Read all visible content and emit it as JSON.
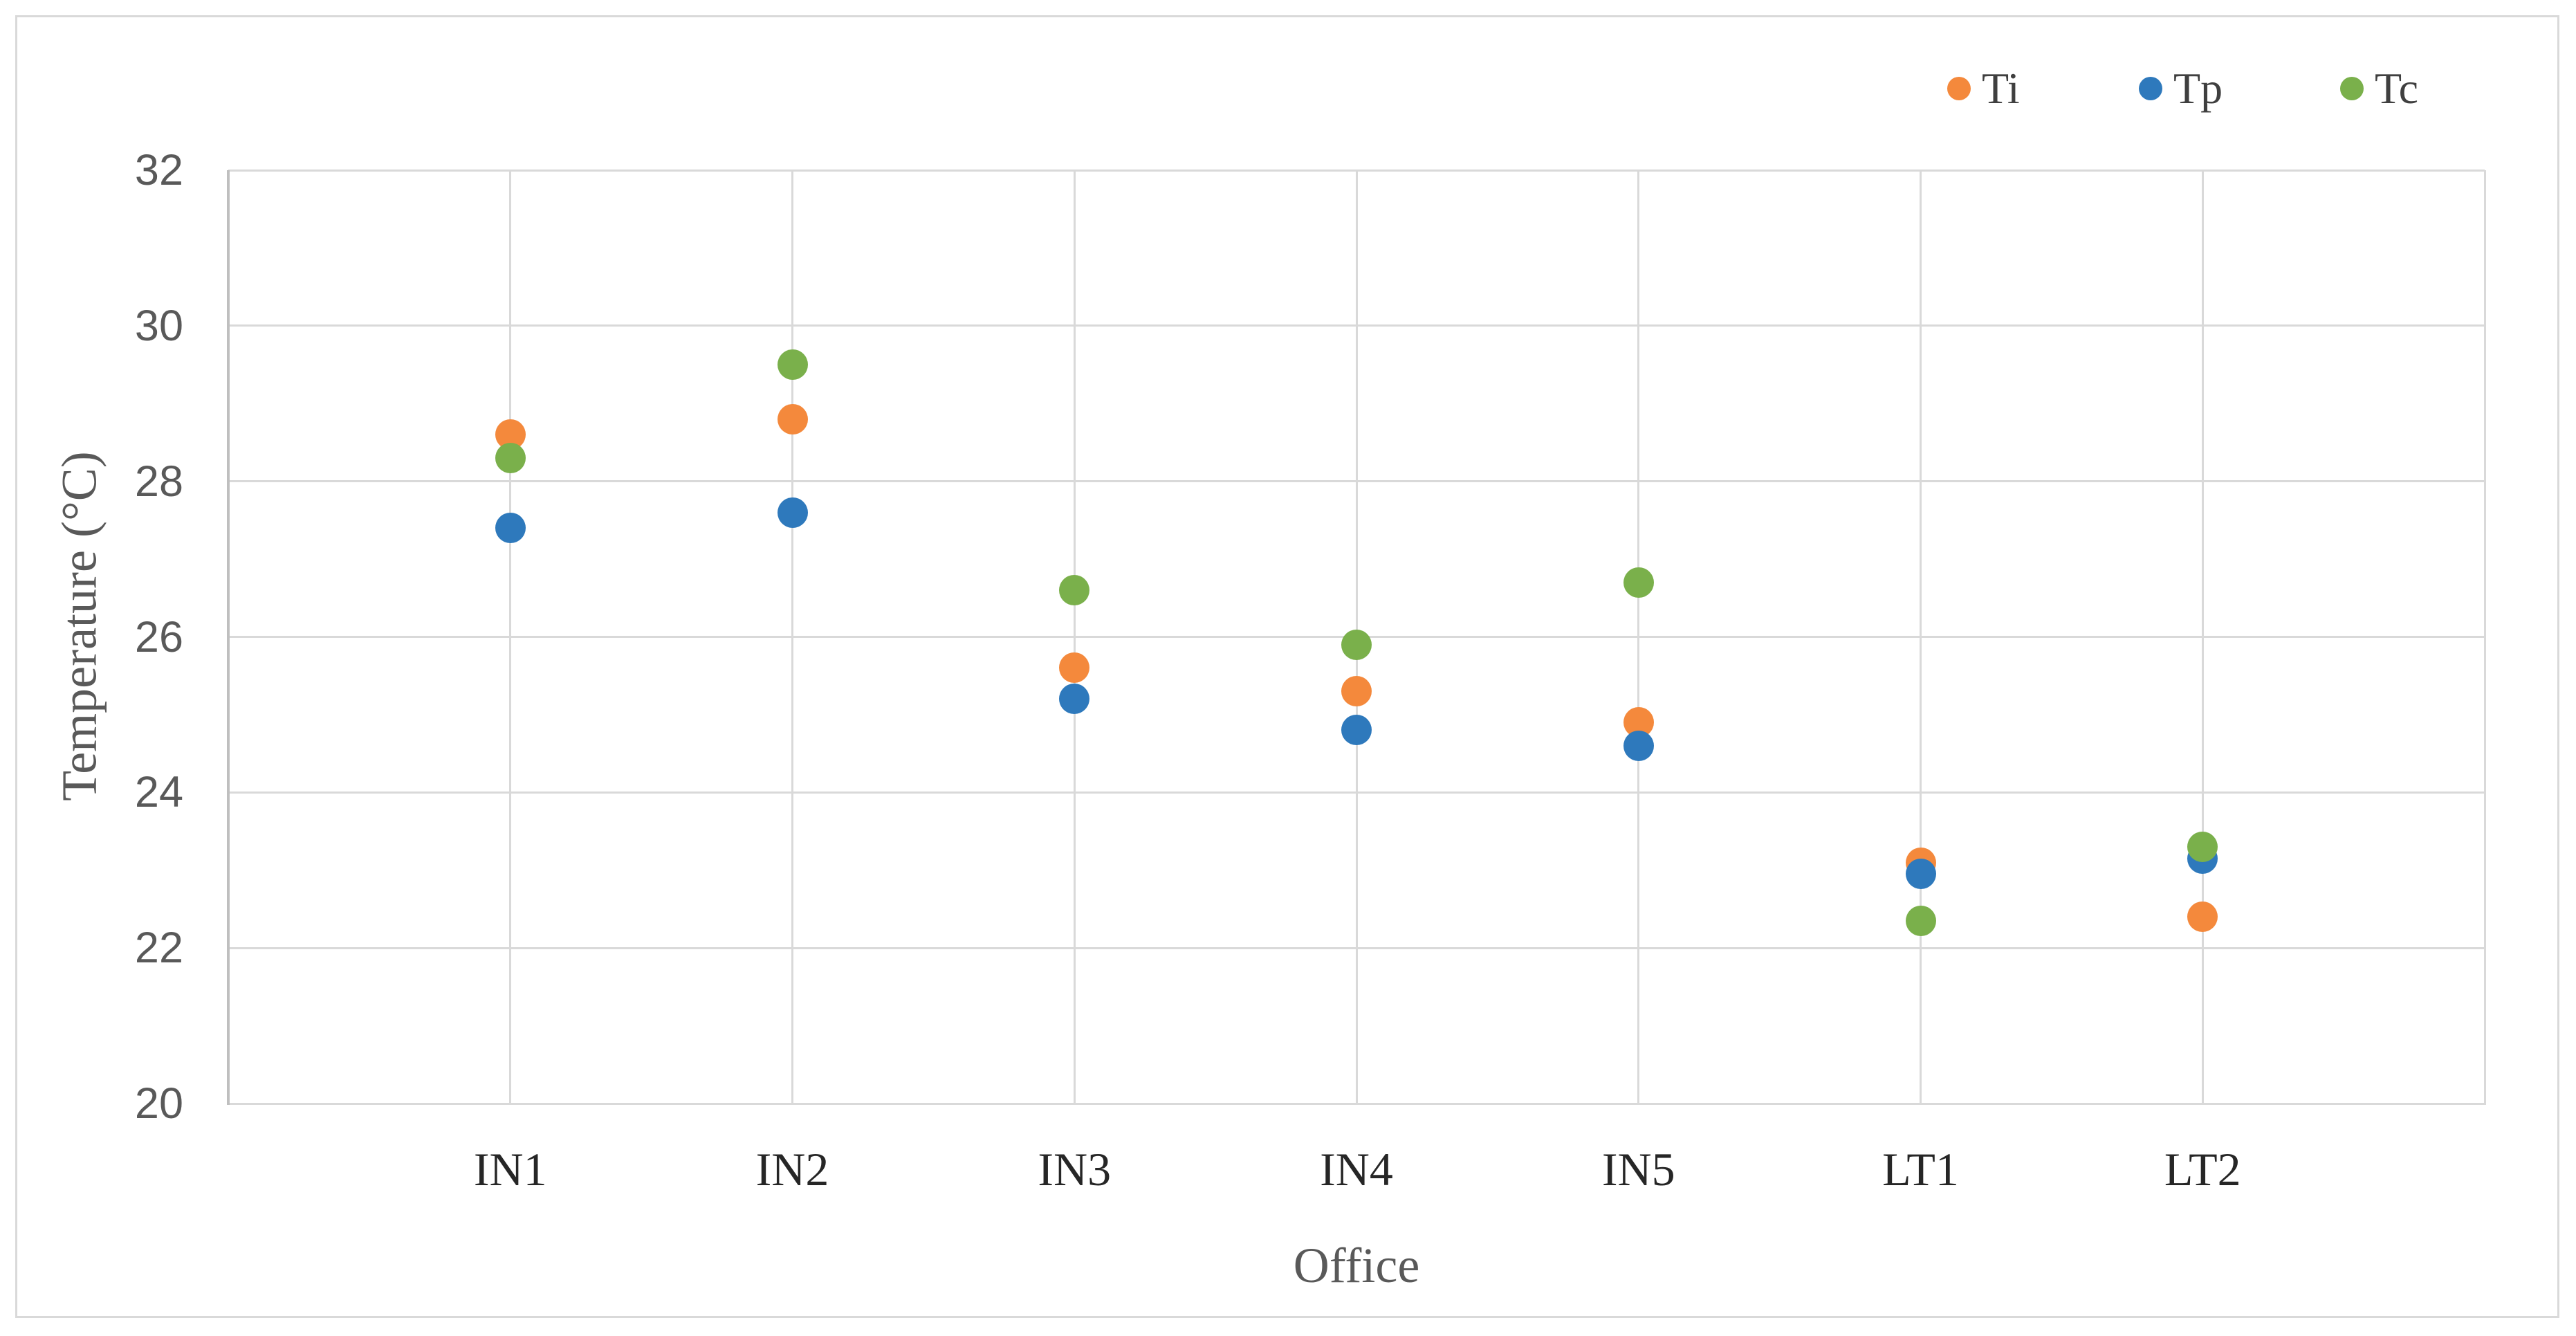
{
  "chart_data": {
    "type": "scatter",
    "title": "",
    "xlabel": "Office",
    "ylabel": "Temperature (°C)",
    "categories": [
      "IN1",
      "IN2",
      "IN3",
      "IN4",
      "IN5",
      "LT1",
      "LT2"
    ],
    "series": [
      {
        "name": "Ti",
        "color": "#F4893C",
        "values": [
          28.6,
          28.8,
          25.6,
          25.3,
          24.9,
          23.1,
          22.4
        ]
      },
      {
        "name": "Tp",
        "color": "#2E79BC",
        "values": [
          27.4,
          27.6,
          25.2,
          24.8,
          24.6,
          22.95,
          23.15
        ]
      },
      {
        "name": "Tc",
        "color": "#7AB04B",
        "values": [
          28.3,
          29.5,
          26.6,
          25.9,
          26.7,
          22.35,
          23.3
        ]
      }
    ],
    "ylim": [
      20,
      32
    ],
    "yticks": [
      20,
      22,
      24,
      26,
      28,
      30,
      32
    ],
    "grid": true,
    "legend_position": "top-right"
  },
  "colors": {
    "gridline": "#D9D9D9",
    "axis_line": "#BFBFBF",
    "tick_text": "#595959",
    "axis_title_text": "#595959",
    "category_text": "#262626",
    "legend_text": "#3F3F3F",
    "frame_border": "#D9D9D9",
    "background": "#FFFFFF"
  }
}
